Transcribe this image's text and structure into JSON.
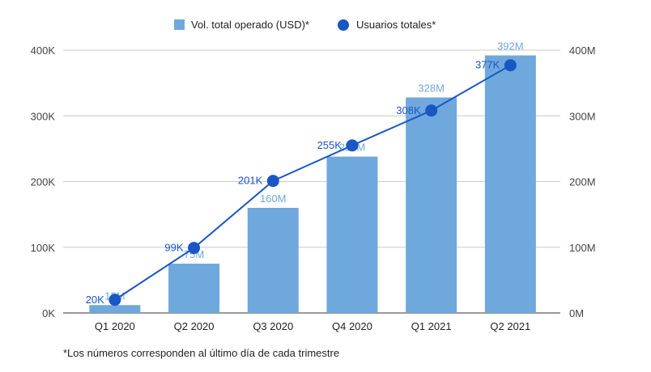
{
  "chart_data": {
    "type": "bar",
    "categories": [
      "Q1 2020",
      "Q2 2020",
      "Q3 2020",
      "Q4 2020",
      "Q1 2021",
      "Q2 2021"
    ],
    "series": [
      {
        "name": "Vol. total operado (USD)*",
        "type": "bar",
        "axis": "right",
        "values": [
          12,
          75,
          160,
          238,
          328,
          392
        ],
        "labels": [
          "12M",
          "75M",
          "160M",
          "238M",
          "328M",
          "392M"
        ],
        "color": "#6fa8dc"
      },
      {
        "name": "Usuarios totales*",
        "type": "line",
        "axis": "left",
        "values": [
          20,
          99,
          201,
          255,
          308,
          377
        ],
        "labels": [
          "20K",
          "99K",
          "201K",
          "255K",
          "308K",
          "377K"
        ],
        "color": "#1a56c4"
      }
    ],
    "left_axis": {
      "ticks": [
        "0K",
        "100K",
        "200K",
        "300K",
        "400K"
      ],
      "ylim": [
        0,
        400
      ]
    },
    "right_axis": {
      "ticks": [
        "0M",
        "100M",
        "200M",
        "300M",
        "400M"
      ],
      "ylim": [
        0,
        400
      ]
    },
    "legend_position": "top",
    "grid": true
  },
  "footnote": "*Los números corresponden al último día de cada trimestre"
}
